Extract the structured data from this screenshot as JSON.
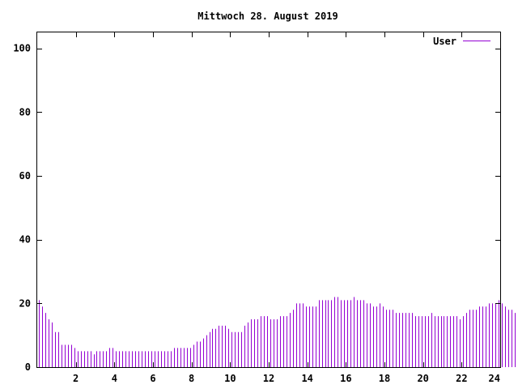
{
  "chart_data": {
    "type": "bar",
    "title": "Mittwoch 28. August 2019",
    "xlabel": "",
    "ylabel": "",
    "xlim": [
      0,
      24
    ],
    "ylim": [
      0,
      105
    ],
    "x_ticks": [
      2,
      4,
      6,
      8,
      10,
      12,
      14,
      16,
      18,
      20,
      22,
      24
    ],
    "y_ticks": [
      0,
      20,
      40,
      60,
      80,
      100
    ],
    "grid": false,
    "legend_position": "top-right",
    "interval_minutes": 10,
    "series": [
      {
        "name": "User",
        "color": "#9400d3",
        "values": [
          21,
          19,
          17,
          15,
          14,
          11,
          11,
          7,
          7,
          7,
          7,
          6,
          5,
          5,
          5,
          5,
          5,
          4,
          5,
          5,
          5,
          5,
          6,
          6,
          5,
          5,
          5,
          5,
          5,
          5,
          5,
          5,
          5,
          5,
          5,
          5,
          5,
          5,
          5,
          5,
          5,
          5,
          6,
          6,
          6,
          6,
          6,
          6,
          7,
          8,
          8,
          9,
          10,
          11,
          12,
          12,
          13,
          13,
          13,
          12,
          11,
          11,
          11,
          11,
          13,
          14,
          15,
          15,
          15,
          16,
          16,
          16,
          15,
          15,
          15,
          16,
          16,
          16,
          17,
          18,
          20,
          20,
          20,
          19,
          19,
          19,
          19,
          21,
          21,
          21,
          21,
          21,
          22,
          22,
          21,
          21,
          21,
          21,
          22,
          21,
          21,
          21,
          20,
          20,
          19,
          19,
          20,
          19,
          18,
          18,
          18,
          17,
          17,
          17,
          17,
          17,
          17,
          16,
          16,
          16,
          16,
          16,
          17,
          16,
          16,
          16,
          16,
          16,
          16,
          16,
          16,
          15,
          16,
          17,
          18,
          18,
          18,
          19,
          19,
          19,
          20,
          20,
          20,
          21,
          20,
          19,
          18,
          18,
          17,
          16
        ]
      }
    ]
  }
}
